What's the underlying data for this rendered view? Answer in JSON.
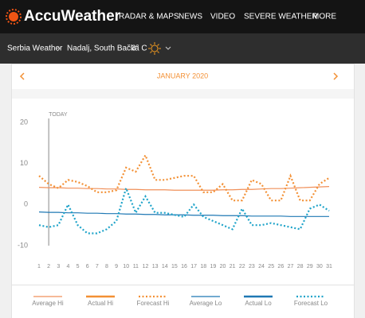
{
  "header": {
    "logo": "AccuWeather",
    "nav": [
      "RADAR & MAPS",
      "NEWS",
      "VIDEO",
      "SEVERE WEATHER",
      "MORE"
    ]
  },
  "breadcrumb": {
    "country": "Serbia Weather",
    "location": "Nadalj, South Bačka",
    "temperature": "3° C"
  },
  "chart_data": {
    "type": "line",
    "title": "JANUARY 2020",
    "x": [
      1,
      2,
      3,
      4,
      5,
      6,
      7,
      8,
      9,
      10,
      11,
      12,
      13,
      14,
      15,
      16,
      17,
      18,
      19,
      20,
      21,
      22,
      23,
      24,
      25,
      26,
      27,
      28,
      29,
      30,
      31
    ],
    "xlim": [
      1,
      31
    ],
    "ylim": [
      -10,
      20
    ],
    "yticks": [
      -10,
      0,
      10,
      20
    ],
    "annotation": "TODAY",
    "today": 2,
    "series": [
      {
        "name": "Average Hi",
        "color": "#f0905a",
        "style": "solid",
        "width": 1.2,
        "values": [
          4.2,
          4.1,
          4.1,
          4.0,
          4.0,
          3.9,
          3.9,
          3.8,
          3.8,
          3.7,
          3.7,
          3.6,
          3.6,
          3.6,
          3.5,
          3.5,
          3.5,
          3.5,
          3.5,
          3.6,
          3.6,
          3.7,
          3.7,
          3.8,
          3.9,
          3.9,
          4.0,
          4.1,
          4.2,
          4.3,
          4.4
        ]
      },
      {
        "name": "Actual Hi",
        "color": "#f39034",
        "style": "solid",
        "width": 2.5,
        "values": [
          null,
          null,
          null,
          null,
          null,
          null,
          null,
          null,
          null,
          null,
          null,
          null,
          null,
          null,
          null,
          null,
          null,
          null,
          null,
          null,
          null,
          null,
          null,
          null,
          null,
          null,
          null,
          null,
          null,
          null,
          null
        ]
      },
      {
        "name": "Forecast Hi",
        "color": "#f39034",
        "style": "dotted",
        "width": 2.2,
        "values": [
          7,
          5,
          4,
          6,
          5.5,
          4.5,
          3,
          3,
          3.5,
          9,
          8,
          12,
          6,
          6,
          6.5,
          7,
          7,
          3,
          3,
          5,
          1,
          1,
          6,
          5,
          1,
          1,
          7,
          1,
          1,
          5,
          6.5
        ]
      },
      {
        "name": "Average Lo",
        "color": "#1f78b4",
        "style": "solid",
        "width": 1.2,
        "values": [
          -1.8,
          -1.9,
          -1.9,
          -2.0,
          -2.0,
          -2.1,
          -2.1,
          -2.2,
          -2.2,
          -2.3,
          -2.3,
          -2.4,
          -2.4,
          -2.5,
          -2.5,
          -2.5,
          -2.6,
          -2.6,
          -2.6,
          -2.7,
          -2.7,
          -2.7,
          -2.8,
          -2.8,
          -2.8,
          -2.8,
          -2.9,
          -2.9,
          -2.9,
          -2.9,
          -2.9
        ]
      },
      {
        "name": "Actual Lo",
        "color": "#1f78b4",
        "style": "solid",
        "width": 2.5,
        "values": [
          null,
          null,
          null,
          null,
          null,
          null,
          null,
          null,
          null,
          null,
          null,
          null,
          null,
          null,
          null,
          null,
          null,
          null,
          null,
          null,
          null,
          null,
          null,
          null,
          null,
          null,
          null,
          null,
          null,
          null,
          null
        ]
      },
      {
        "name": "Forecast Lo",
        "color": "#1ea3c9",
        "style": "dotted",
        "width": 2.2,
        "values": [
          -5,
          -5.5,
          -5,
          0,
          -5,
          -7,
          -7,
          -6,
          -4,
          4,
          -2,
          2,
          -2,
          -2,
          -2.5,
          -3,
          0,
          -3,
          -4,
          -5,
          -6,
          -1,
          -5,
          -5,
          -4.5,
          -5,
          -5.5,
          -6,
          -1,
          0,
          -1.5
        ]
      }
    ]
  }
}
